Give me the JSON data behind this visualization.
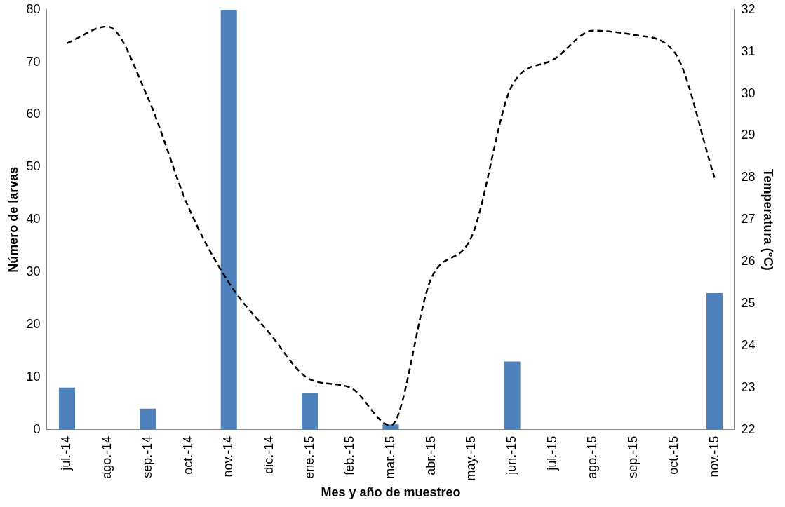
{
  "chart_data": {
    "type": "bar",
    "xlabel": "Mes y año de muestreo",
    "ylabel": "Número de larvas",
    "y2label": "Temperatura (°C)",
    "categories": [
      "jul.-14",
      "ago.-14",
      "sep.-14",
      "oct.-14",
      "nov.-14",
      "dic.-14",
      "ene.-15",
      "feb.-15",
      "mar.-15",
      "abr.-15",
      "may.-15",
      "jun.-15",
      "jul.-15",
      "ago.-15",
      "sep.-15",
      "oct.-15",
      "nov.-15"
    ],
    "series": [
      {
        "color": "#4f81bd",
        "values": [
          8,
          0,
          4,
          0,
          80,
          0,
          7,
          0,
          1,
          0,
          0,
          13,
          0,
          0,
          0,
          0,
          26
        ]
      },
      {
        "type": "line",
        "axis": "y2",
        "color": "#000000",
        "line_style": "dashed",
        "marker": "none",
        "values": [
          31.2,
          31.6,
          29.9,
          27.3,
          25.5,
          24.3,
          23.2,
          23.0,
          22.1,
          25.6,
          26.6,
          30.2,
          30.8,
          31.5,
          31.4,
          31.0,
          28.0
        ]
      }
    ],
    "ylim": [
      0,
      80
    ],
    "yticks": [
      0,
      10,
      20,
      30,
      40,
      50,
      60,
      70,
      80
    ],
    "y2lim": [
      22,
      32
    ],
    "y2ticks": [
      22,
      23,
      24,
      25,
      26,
      27,
      28,
      29,
      30,
      31,
      32
    ],
    "grid": false,
    "legend": false
  }
}
